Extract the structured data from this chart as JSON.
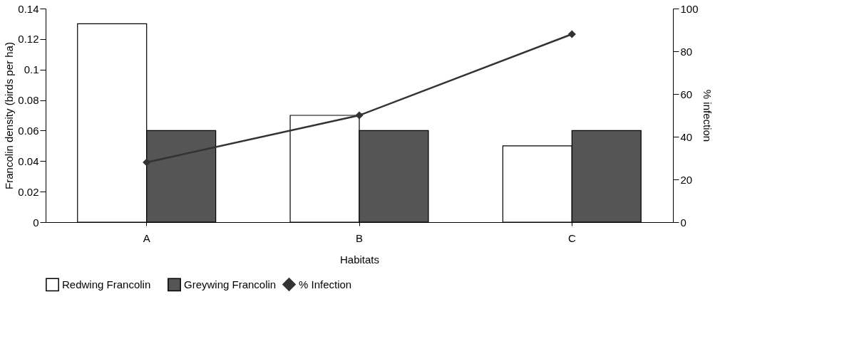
{
  "chart_data": {
    "type": "bar",
    "xlabel": "Habitats",
    "ylabel": "Francolin density (birds per ha)",
    "y2label": "% infection",
    "categories": [
      "A",
      "B",
      "C"
    ],
    "series": [
      {
        "name": "Redwing Francolin",
        "color": "#ffffff",
        "values": [
          0.13,
          0.07,
          0.05
        ]
      },
      {
        "name": "Greywing Francolin",
        "color": "#555555",
        "values": [
          0.06,
          0.06,
          0.06
        ]
      },
      {
        "name": "% Infection",
        "type": "line",
        "axis": "y2",
        "color": "#333333",
        "values": [
          28,
          50,
          88
        ]
      }
    ],
    "ylim": [
      0,
      0.14
    ],
    "yticks": [
      0,
      0.02,
      0.04,
      0.06,
      0.08,
      0.1,
      0.12,
      0.14
    ],
    "y2lim": [
      0,
      100
    ],
    "y2ticks": [
      0,
      20,
      40,
      60,
      80,
      100
    ],
    "marker": "diamond",
    "legend": "bottom",
    "grid": false
  }
}
